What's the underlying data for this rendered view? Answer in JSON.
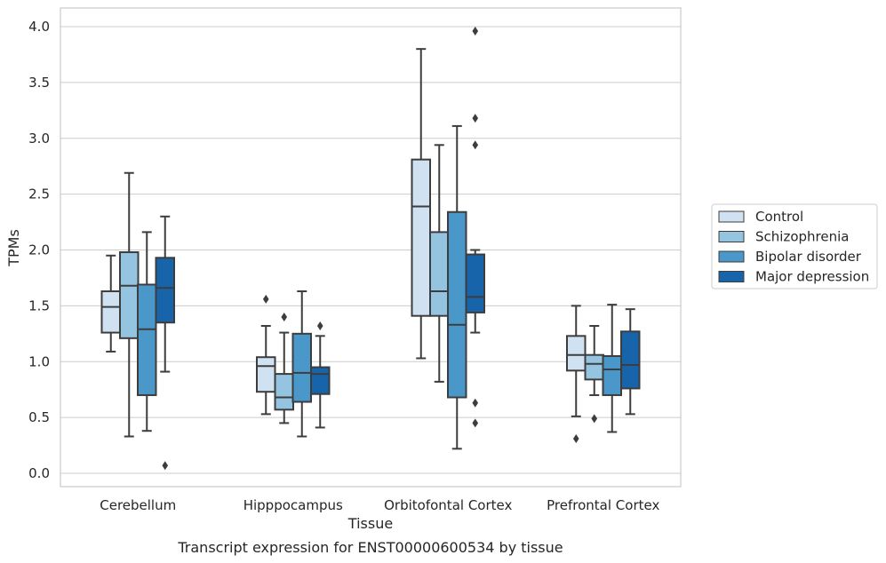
{
  "chart_data": {
    "type": "box",
    "title": "",
    "caption": "Transcript expression for ENST00000600534 by tissue",
    "xlabel": "Tissue",
    "ylabel": "TPMs",
    "ylim": [
      -0.12,
      4.16
    ],
    "yticks": [
      "0.0",
      "0.5",
      "1.0",
      "1.5",
      "2.0",
      "2.5",
      "3.0",
      "3.5",
      "4.0"
    ],
    "grid": "horizontal",
    "legend_position": "right",
    "categories": [
      "Cerebellum",
      "Hipppocampus",
      "Orbitofontal Cortex",
      "Prefrontal Cortex"
    ],
    "series": [
      {
        "name": "Control",
        "color": "#d0e1f2",
        "boxes": [
          {
            "whislo": 1.09,
            "q1": 1.26,
            "med": 1.49,
            "q3": 1.63,
            "whishi": 1.95,
            "fliers": []
          },
          {
            "whislo": 0.53,
            "q1": 0.73,
            "med": 0.96,
            "q3": 1.04,
            "whishi": 1.32,
            "fliers": [
              1.56
            ]
          },
          {
            "whislo": 1.03,
            "q1": 1.41,
            "med": 2.39,
            "q3": 2.81,
            "whishi": 3.8,
            "fliers": []
          },
          {
            "whislo": 0.51,
            "q1": 0.92,
            "med": 1.06,
            "q3": 1.23,
            "whishi": 1.5,
            "fliers": [
              0.31
            ]
          }
        ]
      },
      {
        "name": "Schizophrenia",
        "color": "#94c4df",
        "boxes": [
          {
            "whislo": 0.33,
            "q1": 1.21,
            "med": 1.68,
            "q3": 1.98,
            "whishi": 2.69,
            "fliers": []
          },
          {
            "whislo": 0.45,
            "q1": 0.57,
            "med": 0.68,
            "q3": 0.89,
            "whishi": 1.26,
            "fliers": [
              1.4
            ]
          },
          {
            "whislo": 0.82,
            "q1": 1.41,
            "med": 1.63,
            "q3": 2.16,
            "whishi": 2.94,
            "fliers": []
          },
          {
            "whislo": 0.7,
            "q1": 0.84,
            "med": 0.98,
            "q3": 1.06,
            "whishi": 1.32,
            "fliers": [
              0.49
            ]
          }
        ]
      },
      {
        "name": "Bipolar disorder",
        "color": "#4a98c9",
        "boxes": [
          {
            "whislo": 0.38,
            "q1": 0.7,
            "med": 1.29,
            "q3": 1.69,
            "whishi": 2.16,
            "fliers": []
          },
          {
            "whislo": 0.33,
            "q1": 0.64,
            "med": 0.9,
            "q3": 1.25,
            "whishi": 1.63,
            "fliers": []
          },
          {
            "whislo": 0.22,
            "q1": 0.68,
            "med": 1.33,
            "q3": 2.34,
            "whishi": 3.11,
            "fliers": []
          },
          {
            "whislo": 0.37,
            "q1": 0.7,
            "med": 0.93,
            "q3": 1.05,
            "whishi": 1.51,
            "fliers": []
          }
        ]
      },
      {
        "name": "Major depression",
        "color": "#1764ab",
        "boxes": [
          {
            "whislo": 0.91,
            "q1": 1.35,
            "med": 1.66,
            "q3": 1.93,
            "whishi": 2.3,
            "fliers": [
              0.07
            ]
          },
          {
            "whislo": 0.41,
            "q1": 0.71,
            "med": 0.89,
            "q3": 0.95,
            "whishi": 1.23,
            "fliers": [
              1.32
            ]
          },
          {
            "whislo": 1.26,
            "q1": 1.44,
            "med": 1.58,
            "q3": 1.96,
            "whishi": 2.0,
            "fliers": [
              3.96,
              3.18,
              2.94,
              0.63,
              0.45
            ]
          },
          {
            "whislo": 0.53,
            "q1": 0.76,
            "med": 0.97,
            "q3": 1.27,
            "whishi": 1.47,
            "fliers": []
          }
        ]
      }
    ]
  }
}
